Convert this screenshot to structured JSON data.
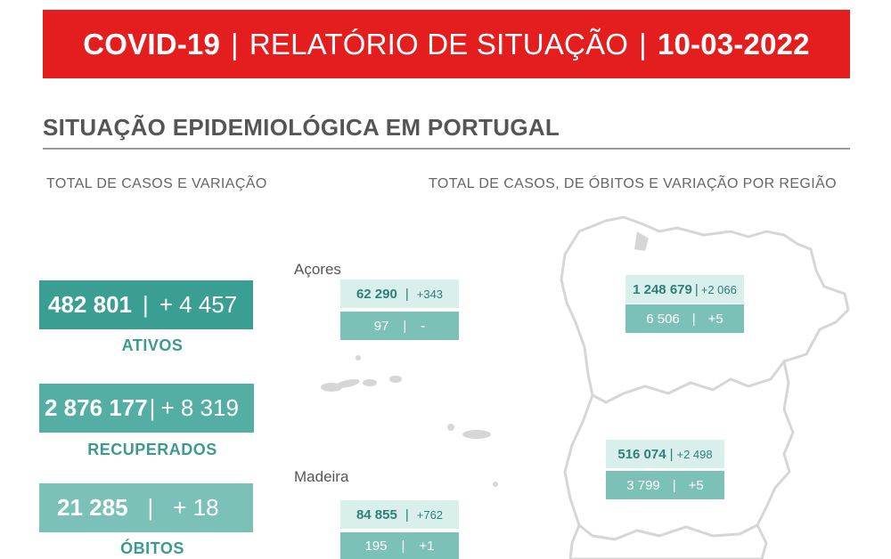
{
  "header": {
    "part1": "COVID-19",
    "sep": "|",
    "part2": "RELATÓRIO DE SITUAÇÃO",
    "part3": "10-03-2022"
  },
  "section": {
    "title": "SITUAÇÃO EPIDEMIOLÓGICA EM PORTUGAL",
    "left_subtitle": "TOTAL DE CASOS E VARIAÇÃO",
    "right_subtitle": "TOTAL DE CASOS, DE ÓBITOS E VARIAÇÃO POR REGIÃO"
  },
  "stats": [
    {
      "value": "482 801",
      "sep": "|",
      "change": "+ 4 457",
      "label": "ATIVOS",
      "color": "#3a9e93"
    },
    {
      "value": "2 876 177",
      "sep": "|",
      "change": "+ 8 319",
      "label": "RECUPERADOS",
      "color": "#55aea4"
    },
    {
      "value": "21 285",
      "sep": "|",
      "change": "+ 18",
      "label": "ÓBITOS",
      "color": "#7cc1b8"
    }
  ],
  "regions": {
    "acores": {
      "name": "Açores",
      "cases": "62 290",
      "cases_change": "+343",
      "deaths": "97",
      "deaths_change": "-"
    },
    "madeira": {
      "name": "Madeira",
      "cases": "84 855",
      "cases_change": "+762",
      "deaths": "195",
      "deaths_change": "+1"
    },
    "norte": {
      "cases": "1 248 679",
      "cases_change": "+2 066",
      "deaths": "6 506",
      "deaths_change": "+5"
    },
    "centro": {
      "cases": "516 074",
      "cases_change": "+2 498",
      "deaths": "3 799",
      "deaths_change": "+5"
    }
  },
  "colors": {
    "banner": "#e41e1e",
    "teal_dark": "#3a9e93",
    "teal_mid": "#55aea4",
    "teal_light": "#7cc1b8",
    "teal_pale": "#d8efec"
  }
}
